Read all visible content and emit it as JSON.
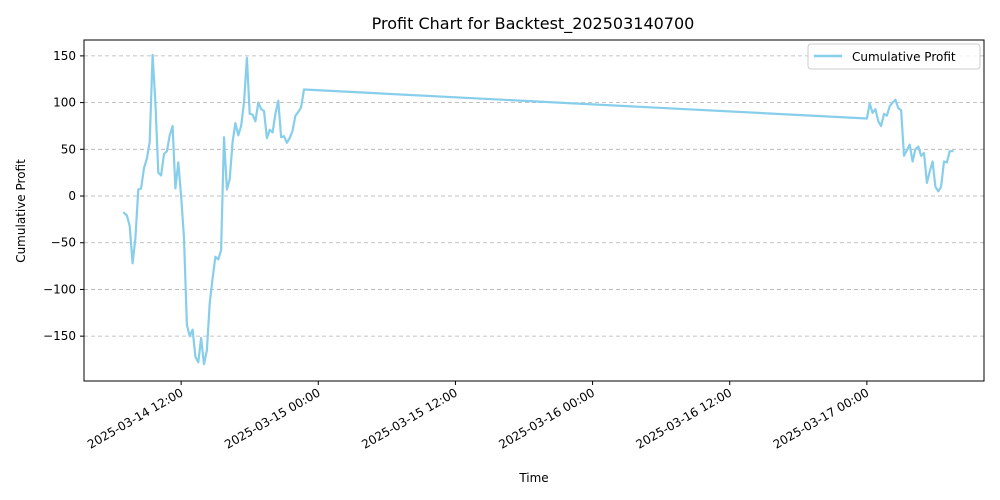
{
  "chart_data": {
    "type": "line",
    "title": "Profit Chart for Backtest_202503140700",
    "xlabel": "Time",
    "ylabel": "Cumulative Profit",
    "x_ticks": [
      {
        "t": "2025-03-14T12:00:00",
        "label": "2025-03-14 12:00"
      },
      {
        "t": "2025-03-15T00:00:00",
        "label": "2025-03-15 00:00"
      },
      {
        "t": "2025-03-15T12:00:00",
        "label": "2025-03-15 12:00"
      },
      {
        "t": "2025-03-16T00:00:00",
        "label": "2025-03-16 00:00"
      },
      {
        "t": "2025-03-16T12:00:00",
        "label": "2025-03-16 12:00"
      },
      {
        "t": "2025-03-17T00:00:00",
        "label": "2025-03-17 00:00"
      }
    ],
    "y_ticks": [
      150,
      100,
      50,
      0,
      -50,
      -100,
      -150
    ],
    "y_tick_labels": [
      "150",
      "100",
      "50",
      "0",
      "−50",
      "−100",
      "−150"
    ],
    "xlim": [
      "2025-03-14T03:30:00",
      "2025-03-17T10:15:00"
    ],
    "ylim": [
      -198,
      167
    ],
    "grid": {
      "x": false,
      "y": true
    },
    "legend_position": "top-right",
    "series": [
      {
        "name": "Cumulative Profit",
        "color": "#87CEEB",
        "points": [
          [
            "2025-03-14T07:00",
            -18
          ],
          [
            "2025-03-14T07:15",
            -21
          ],
          [
            "2025-03-14T07:30",
            -32
          ],
          [
            "2025-03-14T07:45",
            -72
          ],
          [
            "2025-03-14T08:00",
            -45
          ],
          [
            "2025-03-14T08:15",
            7
          ],
          [
            "2025-03-14T08:30",
            8
          ],
          [
            "2025-03-14T08:45",
            30
          ],
          [
            "2025-03-14T09:00",
            40
          ],
          [
            "2025-03-14T09:15",
            58
          ],
          [
            "2025-03-14T09:30",
            151
          ],
          [
            "2025-03-14T09:45",
            100
          ],
          [
            "2025-03-14T10:00",
            25
          ],
          [
            "2025-03-14T10:15",
            22
          ],
          [
            "2025-03-14T10:30",
            45
          ],
          [
            "2025-03-14T10:45",
            48
          ],
          [
            "2025-03-14T11:00",
            65
          ],
          [
            "2025-03-14T11:15",
            75
          ],
          [
            "2025-03-14T11:30",
            8
          ],
          [
            "2025-03-14T11:45",
            36
          ],
          [
            "2025-03-14T12:00",
            0
          ],
          [
            "2025-03-14T12:15",
            -45
          ],
          [
            "2025-03-14T12:30",
            -138
          ],
          [
            "2025-03-14T12:45",
            -150
          ],
          [
            "2025-03-14T13:00",
            -143
          ],
          [
            "2025-03-14T13:15",
            -172
          ],
          [
            "2025-03-14T13:30",
            -178
          ],
          [
            "2025-03-14T13:45",
            -152
          ],
          [
            "2025-03-14T14:00",
            -180
          ],
          [
            "2025-03-14T14:15",
            -165
          ],
          [
            "2025-03-14T14:30",
            -115
          ],
          [
            "2025-03-14T14:45",
            -88
          ],
          [
            "2025-03-14T15:00",
            -65
          ],
          [
            "2025-03-14T15:15",
            -68
          ],
          [
            "2025-03-14T15:30",
            -58
          ],
          [
            "2025-03-14T15:45",
            63
          ],
          [
            "2025-03-14T16:00",
            7
          ],
          [
            "2025-03-14T16:15",
            18
          ],
          [
            "2025-03-14T16:30",
            58
          ],
          [
            "2025-03-14T16:45",
            78
          ],
          [
            "2025-03-14T17:00",
            65
          ],
          [
            "2025-03-14T17:15",
            75
          ],
          [
            "2025-03-14T17:30",
            100
          ],
          [
            "2025-03-14T17:45",
            148
          ],
          [
            "2025-03-14T18:00",
            88
          ],
          [
            "2025-03-14T18:15",
            87
          ],
          [
            "2025-03-14T18:30",
            80
          ],
          [
            "2025-03-14T18:45",
            100
          ],
          [
            "2025-03-14T19:00",
            93
          ],
          [
            "2025-03-14T19:15",
            91
          ],
          [
            "2025-03-14T19:30",
            62
          ],
          [
            "2025-03-14T19:45",
            71
          ],
          [
            "2025-03-14T20:00",
            68
          ],
          [
            "2025-03-14T20:15",
            88
          ],
          [
            "2025-03-14T20:30",
            102
          ],
          [
            "2025-03-14T20:45",
            63
          ],
          [
            "2025-03-14T21:00",
            64
          ],
          [
            "2025-03-14T21:15",
            57
          ],
          [
            "2025-03-14T21:30",
            62
          ],
          [
            "2025-03-14T21:45",
            70
          ],
          [
            "2025-03-14T22:00",
            86
          ],
          [
            "2025-03-14T22:15",
            90
          ],
          [
            "2025-03-14T22:30",
            95
          ],
          [
            "2025-03-14T22:45",
            114
          ],
          [
            "2025-03-17T00:00",
            83
          ],
          [
            "2025-03-17T00:15",
            99
          ],
          [
            "2025-03-17T00:30",
            89
          ],
          [
            "2025-03-17T00:45",
            93
          ],
          [
            "2025-03-17T01:00",
            80
          ],
          [
            "2025-03-17T01:15",
            75
          ],
          [
            "2025-03-17T01:30",
            88
          ],
          [
            "2025-03-17T01:45",
            86
          ],
          [
            "2025-03-17T02:00",
            96
          ],
          [
            "2025-03-17T02:15",
            100
          ],
          [
            "2025-03-17T02:30",
            103
          ],
          [
            "2025-03-17T02:45",
            94
          ],
          [
            "2025-03-17T03:00",
            92
          ],
          [
            "2025-03-17T03:15",
            43
          ],
          [
            "2025-03-17T03:30",
            49
          ],
          [
            "2025-03-17T03:45",
            55
          ],
          [
            "2025-03-17T04:00",
            37
          ],
          [
            "2025-03-17T04:15",
            50
          ],
          [
            "2025-03-17T04:30",
            53
          ],
          [
            "2025-03-17T04:45",
            43
          ],
          [
            "2025-03-17T05:00",
            46
          ],
          [
            "2025-03-17T05:15",
            14
          ],
          [
            "2025-03-17T05:30",
            26
          ],
          [
            "2025-03-17T05:45",
            37
          ],
          [
            "2025-03-17T06:00",
            10
          ],
          [
            "2025-03-17T06:15",
            5
          ],
          [
            "2025-03-17T06:30",
            10
          ],
          [
            "2025-03-17T06:45",
            37
          ],
          [
            "2025-03-17T07:00",
            36
          ],
          [
            "2025-03-17T07:15",
            48
          ],
          [
            "2025-03-17T07:30",
            48
          ]
        ]
      }
    ]
  }
}
